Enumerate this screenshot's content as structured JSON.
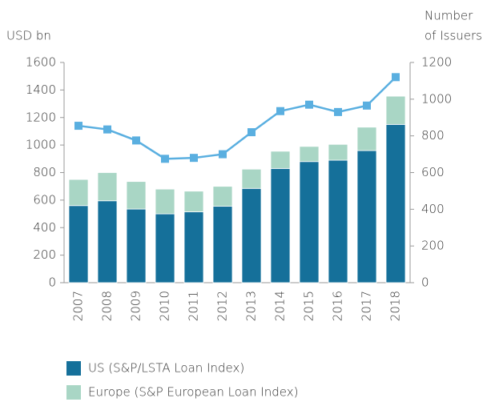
{
  "chart_data": {
    "type": "bar",
    "y_label": "USD bn",
    "y2_label": [
      "Number",
      "of Issuers"
    ],
    "categories": [
      "2007",
      "2008",
      "2009",
      "2010",
      "2011",
      "2012",
      "2013",
      "2014",
      "2015",
      "2016",
      "2017",
      "2018"
    ],
    "series": [
      {
        "name": "US (S&P/LSTA Loan Index)",
        "color": "#15709a",
        "stack": true,
        "values": [
          560,
          595,
          535,
          500,
          515,
          555,
          685,
          830,
          880,
          890,
          960,
          1150
        ]
      },
      {
        "name": "Europe (S&P European Loan Index)",
        "color": "#a9d6c5",
        "stack": true,
        "values": [
          190,
          205,
          200,
          180,
          150,
          145,
          140,
          125,
          110,
          115,
          170,
          205
        ]
      },
      {
        "type": "line",
        "axis": "y2",
        "color": "#5aafe0",
        "values": [
          855,
          835,
          775,
          675,
          680,
          700,
          820,
          935,
          970,
          930,
          965,
          1120
        ]
      }
    ],
    "ylim": [
      0,
      1600
    ],
    "yticks": [
      0,
      200,
      400,
      600,
      800,
      1000,
      1200,
      1400,
      1600
    ],
    "y2lim": [
      0,
      1200
    ],
    "y2ticks": [
      0,
      200,
      400,
      600,
      800,
      1000,
      1200
    ],
    "legend": "bottom"
  }
}
